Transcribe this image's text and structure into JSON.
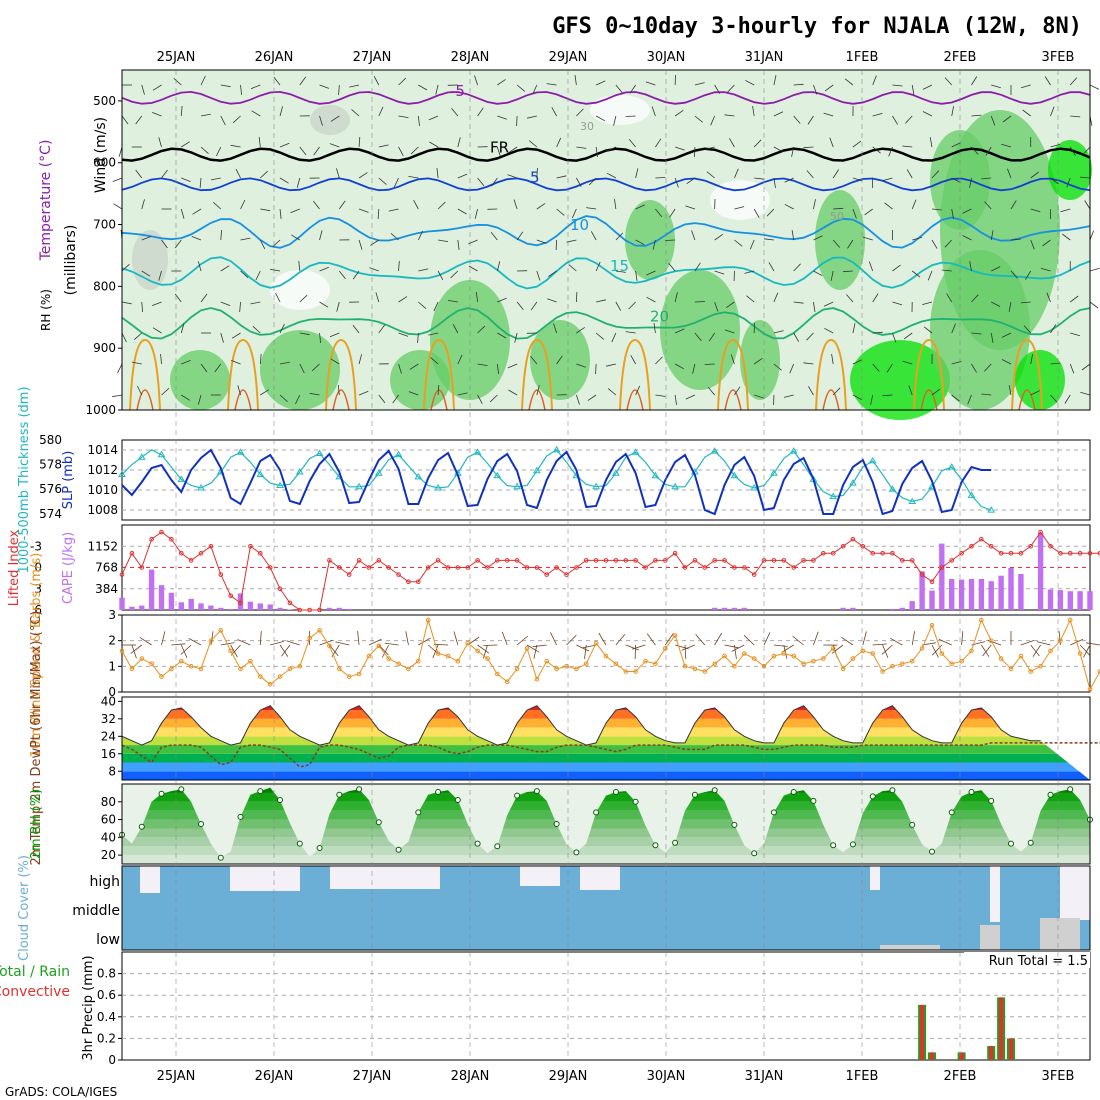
{
  "title": "GFS 0~10day 3-hourly for NJALA (12W, 8N)",
  "footer": "GrADS: COLA/IGES",
  "dates": [
    "25JAN",
    "26JAN",
    "27JAN",
    "28JAN",
    "29JAN",
    "30JAN",
    "31JAN",
    "1FEB",
    "2FEB",
    "3FEB"
  ],
  "colors": {
    "rh_dark": "#00e000",
    "rh_mid": "#66cc66",
    "rh_light": "#dff0df",
    "wind_gray": "#c8d4c8",
    "temp_purple": "#8c1caa",
    "temp_blue": "#1040d0",
    "temp_lightblue": "#1890e0",
    "temp_teal": "#18b8c0",
    "temp_green": "#20b070",
    "thickness": "#20b8c0",
    "slp": "#1030c0",
    "cape": "#c070f0",
    "lifted": "#e03030",
    "wind10": "#e89020",
    "rh2m": "#00a000",
    "cloud": "#6baed6",
    "precip_total": "#20a020",
    "precip_conv": "#e03030"
  },
  "chart_data": [
    {
      "type": "heatmap",
      "name": "upper-air",
      "ylabel": "(millibars)",
      "side_labels": [
        "Wind (m/s)",
        "Temperature (°C)",
        "RH (%)"
      ],
      "yticks": [
        500,
        600,
        700,
        800,
        900,
        1000
      ],
      "ylim": [
        450,
        1000
      ],
      "isotherms": [
        {
          "label": "-5",
          "level_mb": 495
        },
        {
          "label": "FR",
          "level_mb": 587
        },
        {
          "label": "5",
          "level_mb": 635
        },
        {
          "label": "10",
          "level_mb": 712
        },
        {
          "label": "15",
          "level_mb": 778
        },
        {
          "label": "20",
          "level_mb": 860
        }
      ],
      "rh_labels": [
        "30",
        "50"
      ]
    },
    {
      "type": "line",
      "name": "thickness-slp",
      "ylabel_left": "1000-500mb Thickness (dm)",
      "ylabel_right": "SLP (mb)",
      "yticks_left": [
        574,
        576,
        578,
        580
      ],
      "yticks_right": [
        1008,
        1010,
        1012,
        1014
      ],
      "ylim_left": [
        573.5,
        580
      ],
      "ylim_right": [
        1007,
        1015
      ],
      "series": [
        {
          "axis": "left",
          "values": [
            577.2,
            578.0,
            578.6,
            579.2,
            578.8,
            577.8,
            576.8,
            576.3,
            576.1,
            576.5,
            577.4,
            578.6,
            579.0,
            578.2,
            577.2,
            576.5,
            576.3,
            576.4,
            577.4,
            578.5,
            578.9,
            578.0,
            577.0,
            576.2,
            576.2,
            576.3,
            577.3,
            578.4,
            578.8,
            577.9,
            577.0,
            576.3,
            576.1,
            576.2,
            577.3,
            578.6,
            579.0,
            578.1,
            577.1,
            576.3,
            576.2,
            576.3,
            577.5,
            578.7,
            579.2,
            578.2,
            577.1,
            576.4,
            576.2,
            576.3,
            577.3,
            578.6,
            579.0,
            578.2,
            577.1,
            576.4,
            576.2,
            576.2,
            577.4,
            578.6,
            579.1,
            578.3,
            577.1,
            576.4,
            576.1,
            576.3,
            577.3,
            578.5,
            579.1,
            578.0,
            576.8,
            575.8,
            575.4,
            575.5,
            576.5,
            577.8,
            578.3,
            577.2,
            576.0,
            575.3,
            575.0,
            575.2,
            576.2,
            577.5,
            577.8,
            576.8,
            575.5,
            574.6,
            574.3
          ]
        },
        {
          "axis": "right",
          "values": [
            1010.5,
            1009.5,
            1010.8,
            1012.2,
            1012.5,
            1011.0,
            1009.8,
            1012.0,
            1013.2,
            1014.0,
            1012.2,
            1009.2,
            1008.6,
            1010.7,
            1012.9,
            1013.5,
            1012.0,
            1008.9,
            1008.6,
            1010.9,
            1012.6,
            1013.6,
            1011.8,
            1008.7,
            1008.8,
            1011.0,
            1013.0,
            1013.9,
            1012.1,
            1008.6,
            1008.6,
            1011.2,
            1013.0,
            1013.7,
            1011.5,
            1008.4,
            1008.5,
            1011.1,
            1012.9,
            1013.6,
            1011.9,
            1008.5,
            1008.2,
            1011.0,
            1012.9,
            1013.8,
            1012.0,
            1008.3,
            1008.4,
            1011.0,
            1012.8,
            1013.6,
            1011.7,
            1008.3,
            1008.5,
            1011.0,
            1012.8,
            1013.5,
            1011.5,
            1008.0,
            1007.6,
            1010.5,
            1012.5,
            1013.3,
            1011.4,
            1008.0,
            1008.2,
            1011.0,
            1012.6,
            1013.2,
            1011.1,
            1007.6,
            1007.6,
            1010.5,
            1012.3,
            1013.0,
            1010.8,
            1007.6,
            1007.9,
            1010.6,
            1012.2,
            1012.9,
            1010.9,
            1007.8,
            1008.0,
            1010.8,
            1012.3,
            1012.0,
            1012.0
          ]
        }
      ]
    },
    {
      "type": "bar",
      "name": "cape-lifted",
      "ylabel_left": "Lifted Index",
      "ylabel_right": "CAPE (J/kg)",
      "yticks_left": [
        6,
        3,
        0,
        -3
      ],
      "yticks_right": [
        384,
        768,
        1152
      ],
      "ylim_left": [
        6,
        -6
      ],
      "ylim_right": [
        0,
        1536
      ],
      "cape_values": [
        220,
        60,
        80,
        730,
        450,
        310,
        140,
        200,
        120,
        80,
        40,
        20,
        300,
        150,
        120,
        100,
        40,
        10,
        0,
        0,
        0,
        40,
        40,
        20,
        0,
        0,
        0,
        0,
        0,
        0,
        0,
        0,
        0,
        0,
        0,
        0,
        0,
        0,
        0,
        0,
        0,
        0,
        0,
        0,
        0,
        0,
        0,
        0,
        0,
        0,
        0,
        0,
        0,
        0,
        0,
        0,
        0,
        0,
        0,
        0,
        40,
        40,
        40,
        40,
        0,
        0,
        0,
        0,
        0,
        0,
        0,
        0,
        0,
        40,
        40,
        0,
        0,
        0,
        20,
        40,
        160,
        700,
        350,
        1200,
        560,
        550,
        560,
        560,
        520,
        620,
        760,
        650,
        0,
        1390,
        370,
        360,
        340,
        340,
        340
      ],
      "lifted_values": [
        1,
        -2,
        0,
        -4,
        -5,
        -4,
        -2,
        -1,
        -2,
        -3,
        1,
        4,
        5,
        -3,
        -2,
        0,
        3,
        5,
        6,
        6,
        6,
        -1,
        0,
        1,
        -1,
        0,
        -1,
        0,
        1,
        2,
        2,
        0,
        -1,
        0,
        0,
        0,
        -1,
        0,
        -1,
        -1,
        -1,
        0,
        0,
        1,
        0,
        1,
        0,
        -1,
        -1,
        -1,
        -1,
        -1,
        -1,
        0,
        -1,
        -1,
        -2,
        0,
        -1,
        0,
        -1,
        -1,
        0,
        0,
        1,
        -1,
        -1,
        -1,
        0,
        -1,
        -1,
        -2,
        -2,
        -3,
        -4,
        -3,
        -2,
        -2,
        -2,
        -1,
        -1,
        1,
        2,
        0,
        -1,
        -2,
        -3,
        -4,
        -3,
        -2,
        -2,
        -2,
        -3,
        -5,
        -3,
        -2,
        -2,
        -2,
        -2,
        -2
      ]
    },
    {
      "type": "line",
      "name": "wind10m",
      "ylabel": "10m Wind Speed & Barbs (m/s)",
      "yticks": [
        0,
        1,
        2,
        3
      ],
      "ylim": [
        0,
        3
      ],
      "values": [
        1.6,
        0.9,
        1.3,
        1.1,
        0.6,
        0.9,
        1.2,
        1.0,
        0.9,
        2.0,
        2.4,
        1.6,
        0.9,
        1.2,
        0.6,
        0.3,
        0.6,
        0.9,
        1.0,
        2.1,
        2.4,
        1.8,
        0.9,
        0.6,
        0.7,
        1.4,
        1.8,
        1.3,
        1.1,
        0.9,
        1.2,
        2.8,
        1.5,
        1.4,
        1.2,
        1.9,
        1.6,
        1.3,
        0.7,
        0.4,
        0.9,
        1.7,
        0.5,
        1.2,
        0.9,
        1.0,
        0.9,
        1.1,
        1.9,
        1.4,
        1.1,
        0.8,
        0.8,
        1.2,
        1.1,
        1.7,
        2.2,
        1.0,
        0.9,
        0.8,
        1.1,
        1.4,
        1.0,
        1.5,
        1.3,
        1.0,
        1.4,
        1.5,
        1.4,
        1.1,
        1.2,
        1.3,
        1.7,
        0.9,
        1.3,
        1.6,
        1.5,
        0.8,
        1.0,
        1.1,
        1.2,
        1.7,
        2.6,
        1.5,
        1.1,
        1.2,
        1.6,
        2.8,
        2.0,
        1.3,
        0.9,
        1.4,
        0.8,
        1.0,
        1.6,
        2.0,
        2.8,
        1.5,
        0.1,
        0.8,
        0.9
      ]
    },
    {
      "type": "area",
      "name": "temp2m",
      "ylabel": "2m Temp 2m DewPt (6hr Min/Max) (°C)",
      "yticks": [
        8,
        16,
        24,
        32,
        40
      ],
      "ylim": [
        4,
        42
      ],
      "temp_values": [
        24,
        22,
        20,
        22,
        30,
        36,
        37,
        33,
        28,
        24,
        22,
        20,
        21,
        30,
        36,
        38,
        33,
        27,
        24,
        22,
        20,
        21,
        30,
        36,
        38,
        33,
        27,
        24,
        22,
        20,
        21,
        30,
        36,
        37,
        33,
        27,
        24,
        22,
        20,
        21,
        30,
        36,
        38,
        33,
        27,
        24,
        22,
        20,
        21,
        30,
        36,
        37,
        33,
        27,
        24,
        22,
        21,
        21,
        30,
        36,
        37,
        33,
        27,
        24,
        22,
        21,
        21,
        30,
        36,
        38,
        33,
        27,
        24,
        22,
        21,
        21,
        30,
        36,
        38,
        33,
        27,
        24,
        22,
        21,
        21,
        30,
        36,
        37,
        33,
        27,
        24,
        23,
        22,
        22
      ],
      "dewpt_values": [
        20,
        18,
        15,
        12,
        19,
        20,
        20,
        20,
        19,
        15,
        11,
        12,
        19,
        20,
        20,
        19,
        18,
        14,
        10,
        11,
        19,
        20,
        20,
        19,
        18,
        16,
        14,
        15,
        19,
        20,
        20,
        20,
        19,
        17,
        16,
        17,
        19,
        20,
        20,
        20,
        19,
        18,
        17,
        17,
        19,
        20,
        20,
        20,
        19,
        18,
        17,
        18,
        20,
        20,
        20,
        20,
        19,
        18,
        18,
        18,
        20,
        20,
        20,
        20,
        19,
        18,
        18,
        19,
        20,
        20,
        20,
        20,
        19,
        19,
        19,
        20,
        20,
        20,
        20,
        20,
        20,
        20,
        20,
        20,
        20,
        20,
        20,
        20,
        21,
        21,
        21,
        21,
        21,
        21,
        21,
        21,
        21,
        21,
        21,
        21,
        22
      ]
    },
    {
      "type": "area",
      "name": "rh2m",
      "ylabel": "2m RH (%)",
      "yticks": [
        20,
        40,
        60,
        80
      ],
      "ylim": [
        10,
        100
      ],
      "values": [
        43,
        33,
        52,
        80,
        89,
        92,
        94,
        80,
        55,
        33,
        17,
        24,
        63,
        88,
        92,
        96,
        82,
        56,
        33,
        18,
        28,
        66,
        88,
        92,
        94,
        82,
        57,
        36,
        26,
        35,
        68,
        88,
        91,
        93,
        82,
        55,
        33,
        22,
        30,
        65,
        87,
        91,
        92,
        81,
        55,
        32,
        23,
        33,
        68,
        87,
        91,
        92,
        80,
        53,
        31,
        23,
        34,
        70,
        88,
        91,
        93,
        81,
        54,
        31,
        22,
        33,
        68,
        87,
        91,
        93,
        81,
        54,
        31,
        23,
        32,
        67,
        86,
        92,
        93,
        80,
        54,
        32,
        24,
        33,
        68,
        86,
        91,
        93,
        81,
        55,
        33,
        24,
        34,
        70,
        88,
        92,
        94,
        82,
        60
      ]
    },
    {
      "type": "heatmap",
      "name": "cloud-cover",
      "ylabel": "Cloud Cover (%)",
      "rows": [
        "high",
        "middle",
        "low"
      ]
    },
    {
      "type": "bar",
      "name": "precip",
      "ylabel": "3hr Precip (mm)",
      "legend": [
        "Total / Rain",
        "Convective"
      ],
      "annotation": "Run Total = 1.5",
      "yticks": [
        0,
        0.2,
        0.4,
        0.6,
        0.8
      ],
      "ylim": [
        0,
        1.0
      ],
      "bars": [
        {
          "x": 81,
          "value": 0.51
        },
        {
          "x": 82,
          "value": 0.07
        },
        {
          "x": 85,
          "value": 0.07
        },
        {
          "x": 88,
          "value": 0.13
        },
        {
          "x": 89,
          "value": 0.58
        },
        {
          "x": 90,
          "value": 0.2
        }
      ]
    }
  ]
}
